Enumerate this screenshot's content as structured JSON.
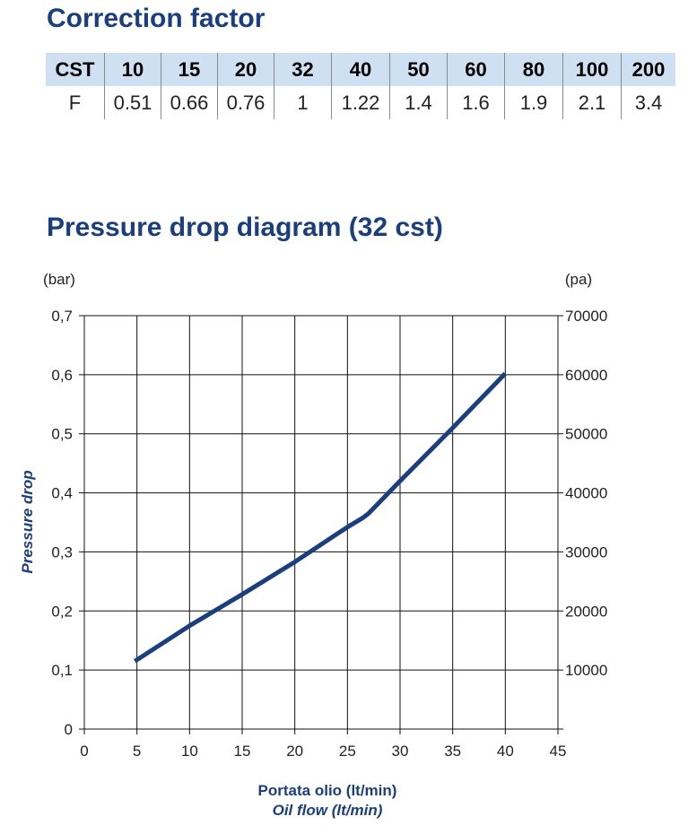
{
  "correction": {
    "title": "Correction factor",
    "header": [
      "CST",
      "10",
      "15",
      "20",
      "32",
      "40",
      "50",
      "60",
      "80",
      "100",
      "200"
    ],
    "row": [
      "F",
      "0.51",
      "0.66",
      "0.76",
      "1",
      "1.22",
      "1.4",
      "1.6",
      "1.9",
      "2.1",
      "3.4"
    ]
  },
  "chart_data": {
    "type": "line",
    "title": "Pressure drop diagram (32 cst)",
    "y_unit_left": "(bar)",
    "y_unit_right": "(pa)",
    "ylabel": "Pressure drop",
    "xlabel_primary": "Portata olio (lt/min)",
    "xlabel_secondary": "Oil flow (lt/min)",
    "xlim": [
      0,
      45
    ],
    "ylim": [
      0,
      0.7
    ],
    "x_ticks": [
      "0",
      "5",
      "10",
      "15",
      "20",
      "25",
      "30",
      "35",
      "40",
      "45"
    ],
    "y_ticks_left": [
      "0",
      "0,1",
      "0,2",
      "0,3",
      "0,4",
      "0,5",
      "0,6",
      "0,7"
    ],
    "y_ticks_right": [
      "",
      "10000",
      "20000",
      "30000",
      "40000",
      "50000",
      "60000",
      "70000"
    ],
    "grid": true,
    "series_color": "#1b3f7d",
    "series": [
      {
        "x": [
          4.8,
          10,
          15,
          20,
          25,
          26.5,
          27,
          30,
          35,
          40
        ],
        "y": [
          0.115,
          0.175,
          0.228,
          0.283,
          0.342,
          0.358,
          0.365,
          0.42,
          0.51,
          0.602
        ]
      }
    ]
  }
}
